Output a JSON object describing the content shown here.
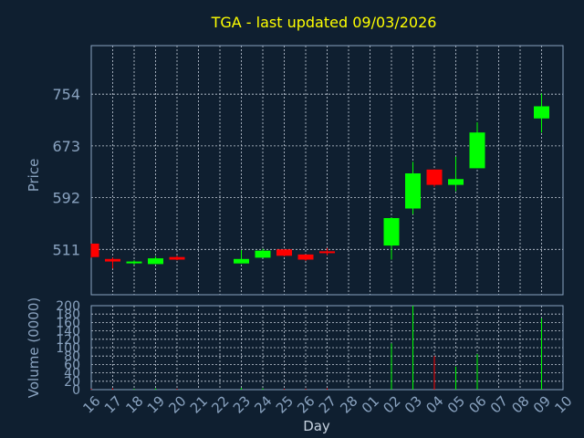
{
  "chart_data": {
    "type": "candlestick",
    "title": "TGA - last updated 09/03/2026",
    "xlabel": "Day",
    "price_axis": {
      "label": "Price",
      "ticks": [
        511,
        592,
        673,
        754
      ],
      "ylim": [
        440,
        830
      ]
    },
    "volume_axis": {
      "label": "Volume (0000)",
      "ticks": [
        0,
        20,
        40,
        60,
        80,
        100,
        120,
        140,
        160,
        180,
        200
      ],
      "ylim": [
        0,
        200
      ]
    },
    "x_ticks": [
      "16",
      "17",
      "18",
      "19",
      "20",
      "21",
      "22",
      "23",
      "24",
      "25",
      "26",
      "27",
      "28",
      "01",
      "02",
      "03",
      "04",
      "05",
      "06",
      "07",
      "08",
      "09",
      "10"
    ],
    "candles": [
      {
        "day": "16",
        "open": 520,
        "high": 520,
        "low": 498,
        "close": 499,
        "volume": 2
      },
      {
        "day": "17",
        "open": 496,
        "high": 498,
        "low": 481,
        "close": 492,
        "volume": 3
      },
      {
        "day": "18",
        "open": 490,
        "high": 494,
        "low": 487,
        "close": 492,
        "volume": 2
      },
      {
        "day": "19",
        "open": 488,
        "high": 500,
        "low": 488,
        "close": 497,
        "volume": 3
      },
      {
        "day": "20",
        "open": 499,
        "high": 501,
        "low": 494,
        "close": 495,
        "volume": 2
      },
      {
        "day": "23",
        "open": 489,
        "high": 510,
        "low": 489,
        "close": 496,
        "volume": 4
      },
      {
        "day": "24",
        "open": 498,
        "high": 512,
        "low": 498,
        "close": 509,
        "volume": 3
      },
      {
        "day": "25",
        "open": 511,
        "high": 511,
        "low": 500,
        "close": 501,
        "volume": 2
      },
      {
        "day": "26",
        "open": 503,
        "high": 503,
        "low": 493,
        "close": 495,
        "volume": 2
      },
      {
        "day": "27",
        "open": 508,
        "high": 513,
        "low": 502,
        "close": 506,
        "volume": 3
      },
      {
        "day": "02",
        "open": 517,
        "high": 561,
        "low": 495,
        "close": 560,
        "volume": 110
      },
      {
        "day": "03",
        "open": 575,
        "high": 648,
        "low": 566,
        "close": 630,
        "volume": 200
      },
      {
        "day": "04",
        "open": 636,
        "high": 636,
        "low": 609,
        "close": 612,
        "volume": 80
      },
      {
        "day": "05",
        "open": 612,
        "high": 656,
        "low": 602,
        "close": 621,
        "volume": 55
      },
      {
        "day": "06",
        "open": 638,
        "high": 710,
        "low": 638,
        "close": 694,
        "volume": 85
      },
      {
        "day": "09",
        "open": 716,
        "high": 755,
        "low": 694,
        "close": 735,
        "volume": 170
      }
    ],
    "grid": true,
    "colors": {
      "background": "#0f1f30",
      "up": "#00ff00",
      "down": "#ff0000",
      "grid": "#c8d0dc",
      "axis": "#8aa3c0",
      "title": "#ffff00"
    }
  }
}
